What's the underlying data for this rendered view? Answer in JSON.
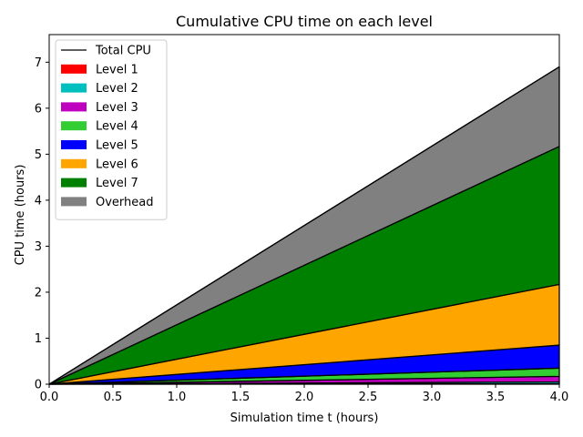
{
  "chart_data": {
    "type": "area",
    "title": "Cumulative CPU time on each level",
    "xlabel": "Simulation time t (hours)",
    "ylabel": "CPU time (hours)",
    "xlim": [
      0.0,
      4.0
    ],
    "ylim": [
      0.0,
      7.6
    ],
    "xticks": [
      "0.0",
      "0.5",
      "1.0",
      "1.5",
      "2.0",
      "2.5",
      "3.0",
      "3.5",
      "4.0"
    ],
    "xtick_values": [
      0.0,
      0.5,
      1.0,
      1.5,
      2.0,
      2.5,
      3.0,
      3.5,
      4.0
    ],
    "yticks": [
      "0",
      "1",
      "2",
      "3",
      "4",
      "5",
      "6",
      "7"
    ],
    "ytick_values": [
      0,
      1,
      2,
      3,
      4,
      5,
      6,
      7
    ],
    "grid": false,
    "legend_position": "top-left",
    "x": [
      0.0,
      4.0
    ],
    "total_line": {
      "name": "Total CPU",
      "color": "#000000",
      "values": [
        0.0,
        6.9
      ]
    },
    "series": [
      {
        "name": "Level 1",
        "color": "#ff0000",
        "values": [
          0.0,
          0.01
        ]
      },
      {
        "name": "Level 2",
        "color": "#00bfbf",
        "values": [
          0.0,
          0.04
        ]
      },
      {
        "name": "Level 3",
        "color": "#bf00bf",
        "values": [
          0.0,
          0.12
        ]
      },
      {
        "name": "Level 4",
        "color": "#32cd32",
        "values": [
          0.0,
          0.18
        ]
      },
      {
        "name": "Level 5",
        "color": "#0000ff",
        "values": [
          0.0,
          0.5
        ]
      },
      {
        "name": "Level 6",
        "color": "#ffa500",
        "values": [
          0.0,
          1.32
        ]
      },
      {
        "name": "Level 7",
        "color": "#008000",
        "values": [
          0.0,
          3.0
        ]
      },
      {
        "name": "Overhead",
        "color": "#808080",
        "values": [
          0.0,
          1.73
        ]
      }
    ]
  }
}
